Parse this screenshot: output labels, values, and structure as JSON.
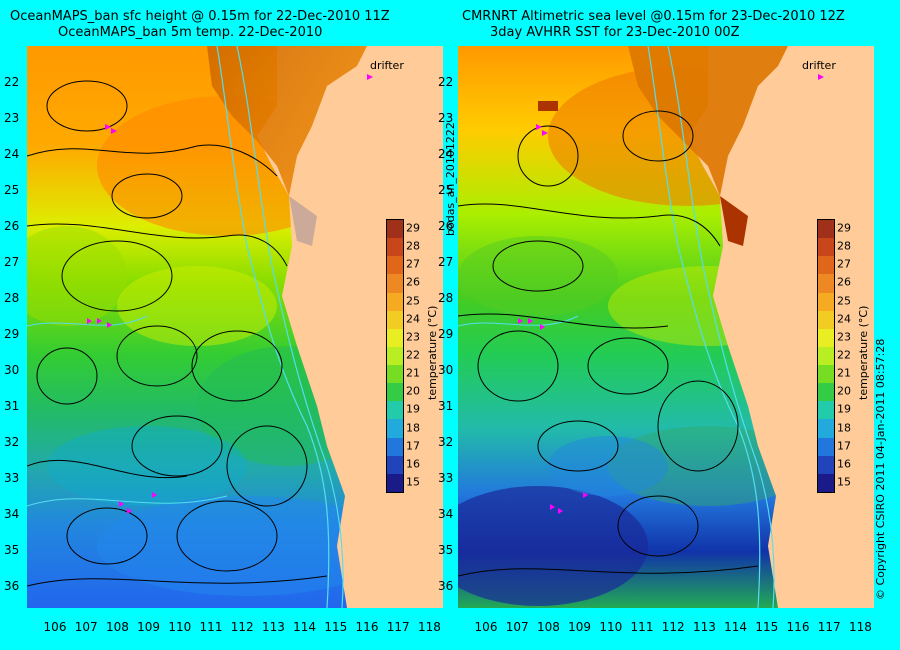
{
  "left": {
    "title_line1": "OceanMAPS_ban sfc height @ 0.15m for 22-Dec-2010 11Z",
    "title_line2": "OceanMAPS_ban 5m temp. 22-Dec-2010"
  },
  "right": {
    "title_line1": "CMRNRT Altimetric sea level  @0.15m  for 23-Dec-2010 12Z",
    "title_line2": "3day AVHRR SST for 23-Dec-2010 00Z"
  },
  "map": {
    "x_ticks": [
      "106",
      "107",
      "108",
      "109",
      "110",
      "111",
      "112",
      "113",
      "114",
      "115",
      "116",
      "117",
      "118"
    ],
    "y_ticks": [
      "22",
      "23",
      "24",
      "25",
      "26",
      "27",
      "28",
      "29",
      "30",
      "31",
      "32",
      "33",
      "34",
      "35",
      "36"
    ],
    "drifter_label": "drifter",
    "side_code": "bodas_an_20101222",
    "copyright": "© Copyright CSIRO 2011   04-Jan-2011 08:57:28",
    "land_color": "#ffcc99",
    "contour_color": "#000000",
    "isobath_color": "#55ddee",
    "drifter_color": "#ff00ff"
  },
  "colorbar": {
    "label": "temperature (°C)",
    "ticks": [
      "29",
      "28",
      "27",
      "26",
      "25",
      "24",
      "23",
      "22",
      "21",
      "20",
      "19",
      "18",
      "17",
      "16",
      "15"
    ],
    "min": 14.5,
    "max": 29.5
  }
}
